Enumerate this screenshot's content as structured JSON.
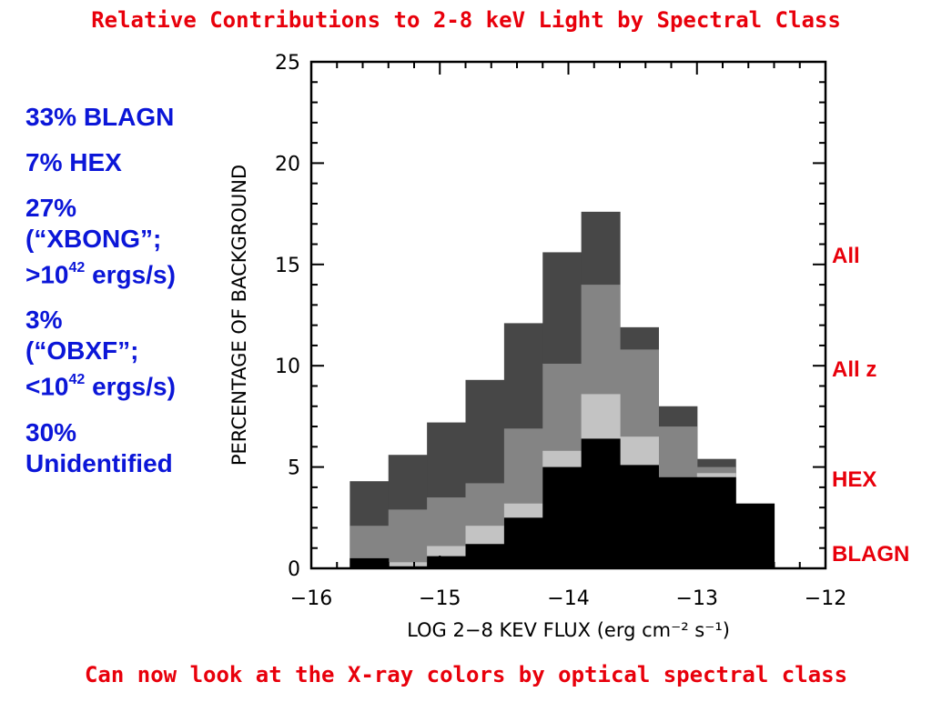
{
  "page": {
    "title": "Relative Contributions to 2-8 keV Light by Spectral Class",
    "footer": "Can now look at the X-ray colors by optical spectral class",
    "left_items": [
      {
        "line1": "33% BLAGN"
      },
      {
        "line1": "7% HEX"
      },
      {
        "line1": "27%",
        "line2": "(“XBONG”;",
        "line3_pre": ">10",
        "line3_sup": "42",
        "line3_post": " ergs/s)"
      },
      {
        "line1": "3%",
        "line2": "(“OBXF”;",
        "line3_pre": "<10",
        "line3_sup": "42",
        "line3_post": " ergs/s)"
      },
      {
        "line1": "30%",
        "line2": "Unidentified"
      }
    ],
    "right_labels": [
      "All",
      "All z",
      "HEX",
      "BLAGN"
    ]
  },
  "chart_data": {
    "type": "bar",
    "title": "",
    "xlabel": "LOG 2−8 KEV FLUX (erg cm⁻² s⁻¹)",
    "ylabel": "PERCENTAGE OF BACKGROUND",
    "xlim": [
      -16,
      -12
    ],
    "ylim": [
      0,
      25
    ],
    "xticks": [
      "−16",
      "−15",
      "−14",
      "−13",
      "−12"
    ],
    "yticks": [
      "0",
      "5",
      "10",
      "15",
      "20",
      "25"
    ],
    "grid": false,
    "bin_edges": [
      -15.7,
      -15.4,
      -15.1,
      -14.8,
      -14.5,
      -14.2,
      -13.9,
      -13.6,
      -13.3,
      -13.0,
      -12.7,
      -12.4
    ],
    "series": [
      {
        "name": "All",
        "color": "#474747",
        "values": [
          4.3,
          5.6,
          7.2,
          9.3,
          12.1,
          15.6,
          17.6,
          11.9,
          8.0,
          5.4,
          0
        ]
      },
      {
        "name": "All z",
        "color": "#848484",
        "values": [
          2.1,
          2.9,
          3.5,
          4.2,
          6.9,
          10.1,
          14.0,
          10.8,
          7.0,
          5.0,
          0
        ]
      },
      {
        "name": "HEX",
        "color": "#c3c3c3",
        "values": [
          0.5,
          0.3,
          1.1,
          2.1,
          3.2,
          5.8,
          8.6,
          6.5,
          4.5,
          4.7,
          0
        ]
      },
      {
        "name": "BLAGN",
        "color": "#000000",
        "values": [
          0.5,
          0.1,
          0.6,
          1.2,
          2.5,
          5.0,
          6.4,
          5.1,
          4.5,
          4.5,
          3.2
        ]
      }
    ]
  }
}
